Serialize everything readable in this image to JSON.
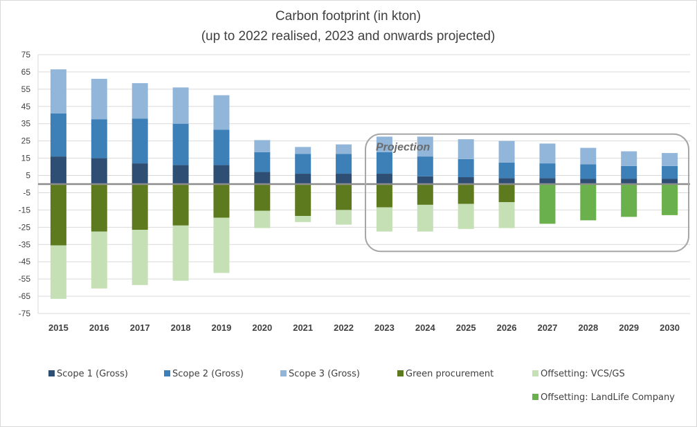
{
  "chart_data": {
    "type": "bar",
    "stacked": true,
    "title": "Carbon footprint  (in kton)",
    "subtitle": "(up to 2022 realised, 2023 and onwards projected)",
    "xlabel": "",
    "ylabel": "",
    "ylim": [
      -75,
      75
    ],
    "yticks": [
      75,
      65,
      55,
      45,
      35,
      25,
      15,
      5,
      -5,
      -15,
      -25,
      -35,
      -45,
      -55,
      -65,
      -75
    ],
    "grid": true,
    "legend": "bottom",
    "categories": [
      "2015",
      "2016",
      "2017",
      "2018",
      "2019",
      "2020",
      "2021",
      "2022",
      "2023",
      "2024",
      "2025",
      "2026",
      "2027",
      "2028",
      "2029",
      "2030"
    ],
    "series": [
      {
        "name": "Scope 1  (Gross)",
        "color": "#2e4f73",
        "values": [
          16,
          15,
          12,
          11,
          11,
          7,
          6,
          6,
          6,
          4.5,
          4,
          3.5,
          3.5,
          3,
          3,
          3
        ]
      },
      {
        "name": "Scope 2  (Gross)",
        "color": "#3d80b8",
        "values": [
          25,
          22.5,
          26,
          24,
          20.5,
          11.5,
          11.5,
          11.5,
          12.5,
          11.5,
          10.5,
          9,
          8.5,
          8.5,
          7.5,
          7.5
        ]
      },
      {
        "name": "Scope 3  (Gross)",
        "color": "#92b6da",
        "values": [
          25.5,
          23.5,
          20.5,
          21,
          20,
          7,
          4,
          5.5,
          9,
          11.5,
          11.5,
          12.5,
          11.5,
          9.5,
          8.5,
          7.5
        ]
      },
      {
        "name": "Green procurement",
        "color": "#5d7a1e",
        "values": [
          -35.5,
          -27.5,
          -26.5,
          -24,
          -19.5,
          -15.5,
          -18.5,
          -15,
          -13.5,
          -12,
          -11.5,
          -10.5,
          0,
          0,
          0,
          0
        ]
      },
      {
        "name": "Offsetting: VCS/GS",
        "color": "#c5e0b4",
        "values": [
          -31,
          -33,
          -32,
          -32,
          -32,
          -10,
          -3.5,
          -8.5,
          -14,
          -15.5,
          -14.5,
          -15,
          0,
          0,
          0,
          0
        ]
      },
      {
        "name": "Offsetting: LandLife Company",
        "color": "#6ab04c",
        "values": [
          0,
          0,
          0,
          0,
          0,
          0,
          0,
          0,
          0,
          0,
          0,
          0,
          -23,
          -21,
          -19,
          -18
        ]
      }
    ],
    "annotations": [
      {
        "text": "Projection",
        "from_category": "2023",
        "to_category": "2030",
        "y_top": 29,
        "y_bottom": -39
      }
    ]
  }
}
